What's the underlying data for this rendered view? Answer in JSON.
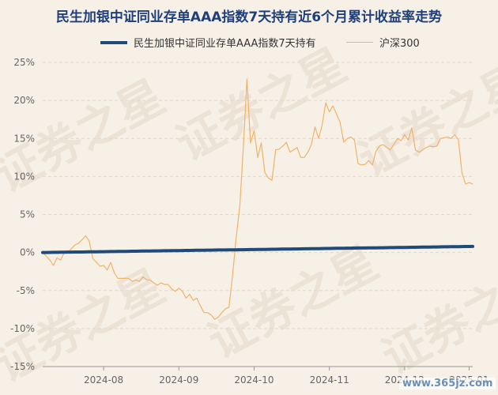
{
  "chart_data": {
    "type": "line",
    "title": "民生加银中证同业存单AAA指数7天持有近6个月累计收益率走势",
    "ylim": [
      -15,
      25
    ],
    "yticks": [
      "25%",
      "20%",
      "15%",
      "10%",
      "5%",
      "0%",
      "-5%",
      "-10%",
      "-15%"
    ],
    "ytick_values": [
      25,
      20,
      15,
      10,
      5,
      0,
      -5,
      -10,
      -15
    ],
    "xticks": [
      "2024-08",
      "2024-09",
      "2024-10",
      "2024-11",
      "2024-12",
      "2025-01"
    ],
    "x_range_index": [
      0,
      120
    ],
    "xtick_index": [
      17,
      38,
      59,
      80,
      101,
      119
    ],
    "grid": true,
    "legend_position": "top",
    "series": [
      {
        "name": "民生加银中证同业存单AAA指数7天持有",
        "color": "#1f4a7a",
        "values": [
          0.0,
          0.0,
          0.01,
          0.02,
          0.02,
          0.03,
          0.04,
          0.05,
          0.05,
          0.06,
          0.07,
          0.07,
          0.08,
          0.09,
          0.09,
          0.1,
          0.11,
          0.11,
          0.12,
          0.13,
          0.13,
          0.14,
          0.15,
          0.15,
          0.16,
          0.17,
          0.17,
          0.18,
          0.19,
          0.19,
          0.2,
          0.21,
          0.21,
          0.22,
          0.23,
          0.23,
          0.24,
          0.25,
          0.25,
          0.26,
          0.27,
          0.27,
          0.28,
          0.29,
          0.29,
          0.3,
          0.31,
          0.31,
          0.32,
          0.33,
          0.33,
          0.34,
          0.35,
          0.35,
          0.36,
          0.37,
          0.37,
          0.38,
          0.39,
          0.39,
          0.4,
          0.41,
          0.41,
          0.42,
          0.43,
          0.43,
          0.44,
          0.45,
          0.45,
          0.46,
          0.47,
          0.47,
          0.48,
          0.49,
          0.49,
          0.5,
          0.51,
          0.51,
          0.52,
          0.53,
          0.53,
          0.54,
          0.55,
          0.55,
          0.56,
          0.57,
          0.57,
          0.58,
          0.59,
          0.59,
          0.6,
          0.61,
          0.61,
          0.62,
          0.63,
          0.63,
          0.64,
          0.65,
          0.65,
          0.66,
          0.67,
          0.67,
          0.68,
          0.69,
          0.69,
          0.7,
          0.71,
          0.71,
          0.72,
          0.73,
          0.73,
          0.74,
          0.75,
          0.75,
          0.76,
          0.77,
          0.77,
          0.78,
          0.79,
          0.79,
          0.8
        ]
      },
      {
        "name": "沪深300",
        "color": "#f0b36a",
        "values": [
          0.0,
          -0.5,
          -1.0,
          -1.7,
          -0.7,
          -1.0,
          0.0,
          0.0,
          0.5,
          1.0,
          1.2,
          1.7,
          2.2,
          1.5,
          -0.8,
          -1.3,
          -1.8,
          -1.7,
          -2.3,
          -1.3,
          -2.7,
          -3.4,
          -3.4,
          -3.4,
          -3.4,
          -3.8,
          -3.6,
          -3.8,
          -3.2,
          -3.6,
          -3.6,
          -4.0,
          -4.3,
          -4.0,
          -4.2,
          -4.2,
          -4.8,
          -5.1,
          -4.7,
          -5.1,
          -6.0,
          -5.5,
          -6.3,
          -6.0,
          -7.0,
          -7.9,
          -7.9,
          -8.2,
          -8.8,
          -8.5,
          -7.9,
          -7.4,
          -7.2,
          -2.9,
          2.0,
          6.0,
          14.0,
          22.8,
          14.4,
          16.0,
          12.5,
          14.4,
          10.5,
          9.8,
          9.5,
          13.5,
          13.6,
          14.0,
          14.5,
          13.2,
          13.5,
          13.8,
          12.5,
          12.5,
          13.2,
          14.2,
          16.5,
          15.0,
          16.8,
          19.7,
          18.5,
          19.3,
          18.2,
          17.1,
          14.5,
          15.0,
          15.2,
          14.8,
          11.7,
          11.5,
          11.6,
          12.1,
          11.5,
          13.3,
          14.0,
          14.2,
          13.8,
          13.5,
          14.2,
          15.0,
          14.7,
          15.5,
          14.8,
          16.4,
          13.5,
          13.2,
          13.5,
          13.8,
          14.0,
          13.9,
          14.0,
          15.0,
          15.1,
          15.2,
          15.0,
          15.5,
          14.8,
          10.5,
          9.0,
          9.2,
          9.0
        ]
      }
    ]
  },
  "watermark": {
    "text": "证券之星",
    "site": "www.365jz.com"
  }
}
